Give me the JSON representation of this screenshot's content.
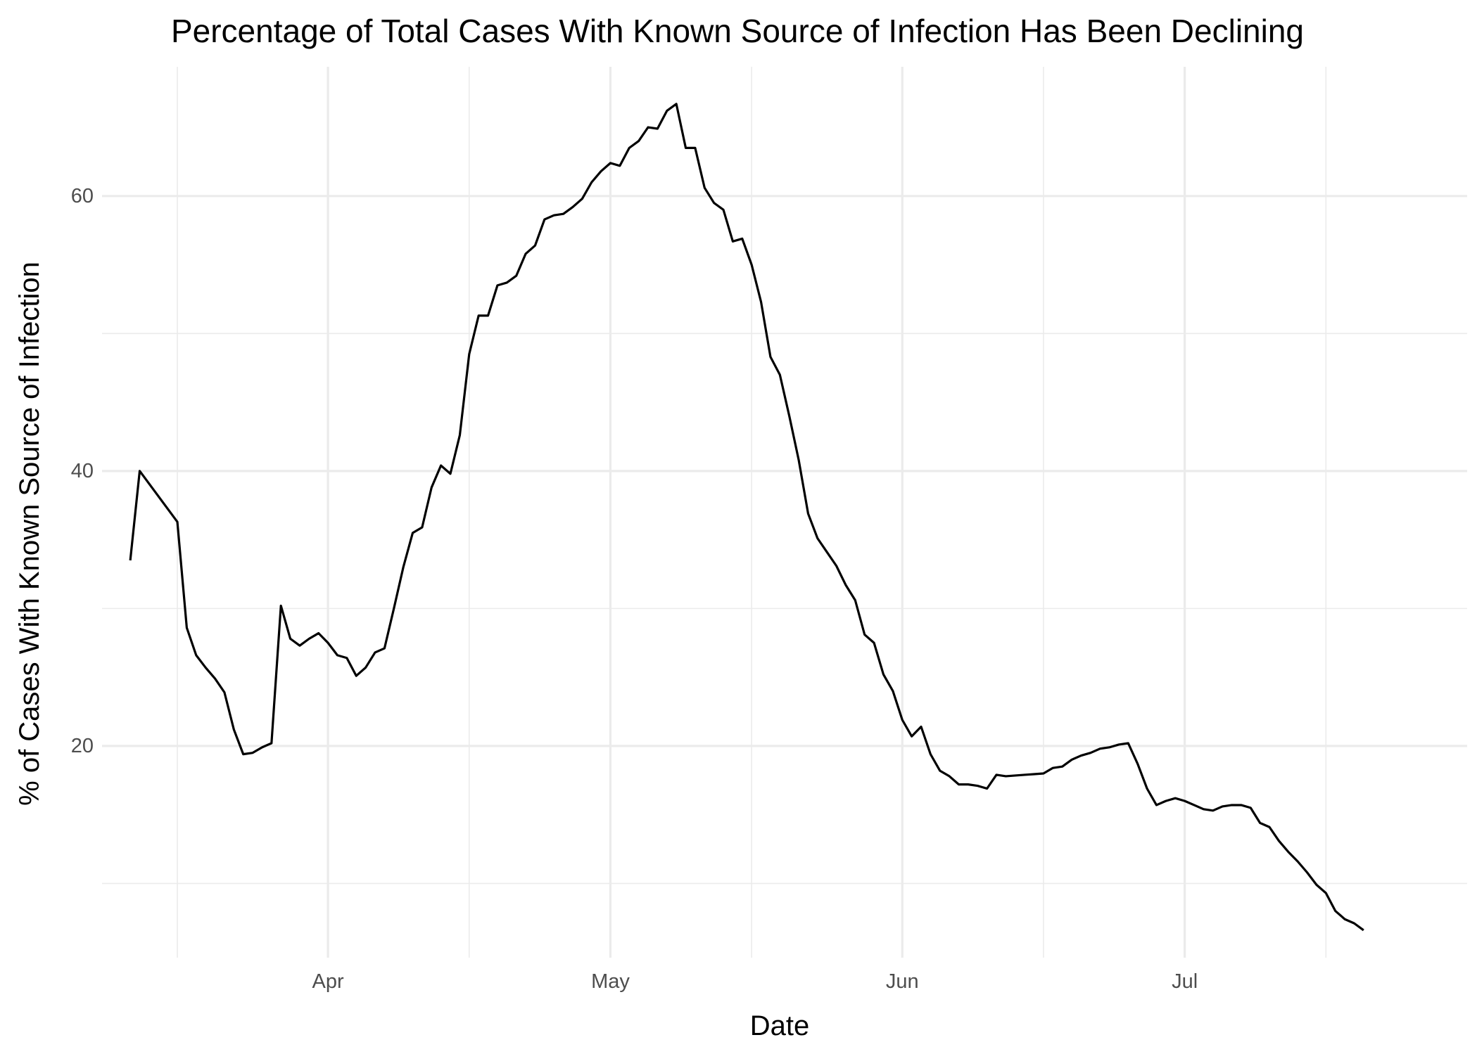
{
  "chart_data": {
    "type": "line",
    "title": "Percentage of Total Cases With Known Source of Infection Has Been Declining",
    "xlabel": "Date",
    "ylabel": "% of Cases With Known Source of Infection",
    "x_axis_type": "date",
    "xlim": [
      "2020-03-08",
      "2020-07-31"
    ],
    "ylim": [
      4.6,
      69.4
    ],
    "y_major_ticks": [
      20,
      40,
      60
    ],
    "y_minor_ticks": [
      10,
      30,
      50
    ],
    "x_major_ticks": [
      {
        "date": "2020-04-01",
        "label": "Apr"
      },
      {
        "date": "2020-05-01",
        "label": "May"
      },
      {
        "date": "2020-06-01",
        "label": "Jun"
      },
      {
        "date": "2020-07-01",
        "label": "Jul"
      }
    ],
    "x_minor_ticks": [
      "2020-03-16",
      "2020-04-16",
      "2020-05-16",
      "2020-06-16",
      "2020-07-16"
    ],
    "grid": true,
    "legend": "none",
    "line_color": "#000000",
    "series": [
      {
        "points": [
          [
            "2020-03-11",
            33.5
          ],
          [
            "2020-03-12",
            40.0
          ],
          [
            "2020-03-16",
            36.3
          ],
          [
            "2020-03-17",
            28.6
          ],
          [
            "2020-03-18",
            26.6
          ],
          [
            "2020-03-19",
            25.7
          ],
          [
            "2020-03-20",
            24.9
          ],
          [
            "2020-03-21",
            23.9
          ],
          [
            "2020-03-22",
            21.2
          ],
          [
            "2020-03-23",
            19.4
          ],
          [
            "2020-03-24",
            19.5
          ],
          [
            "2020-03-25",
            19.9
          ],
          [
            "2020-03-26",
            20.2
          ],
          [
            "2020-03-27",
            30.2
          ],
          [
            "2020-03-28",
            27.8
          ],
          [
            "2020-03-29",
            27.3
          ],
          [
            "2020-03-30",
            27.8
          ],
          [
            "2020-03-31",
            28.2
          ],
          [
            "2020-04-01",
            27.5
          ],
          [
            "2020-04-02",
            26.6
          ],
          [
            "2020-04-03",
            26.4
          ],
          [
            "2020-04-04",
            25.1
          ],
          [
            "2020-04-05",
            25.7
          ],
          [
            "2020-04-06",
            26.8
          ],
          [
            "2020-04-07",
            27.1
          ],
          [
            "2020-04-08",
            30.0
          ],
          [
            "2020-04-09",
            33.0
          ],
          [
            "2020-04-10",
            35.5
          ],
          [
            "2020-04-11",
            35.9
          ],
          [
            "2020-04-12",
            38.8
          ],
          [
            "2020-04-13",
            40.4
          ],
          [
            "2020-04-14",
            39.8
          ],
          [
            "2020-04-15",
            42.6
          ],
          [
            "2020-04-16",
            48.5
          ],
          [
            "2020-04-17",
            51.3
          ],
          [
            "2020-04-18",
            51.3
          ],
          [
            "2020-04-19",
            53.5
          ],
          [
            "2020-04-20",
            53.7
          ],
          [
            "2020-04-21",
            54.2
          ],
          [
            "2020-04-22",
            55.8
          ],
          [
            "2020-04-23",
            56.4
          ],
          [
            "2020-04-24",
            58.3
          ],
          [
            "2020-04-25",
            58.6
          ],
          [
            "2020-04-26",
            58.7
          ],
          [
            "2020-04-27",
            59.2
          ],
          [
            "2020-04-28",
            59.8
          ],
          [
            "2020-04-29",
            61.0
          ],
          [
            "2020-04-30",
            61.8
          ],
          [
            "2020-05-01",
            62.4
          ],
          [
            "2020-05-02",
            62.2
          ],
          [
            "2020-05-03",
            63.5
          ],
          [
            "2020-05-04",
            64.0
          ],
          [
            "2020-05-05",
            65.0
          ],
          [
            "2020-05-06",
            64.9
          ],
          [
            "2020-05-07",
            66.2
          ],
          [
            "2020-05-08",
            66.7
          ],
          [
            "2020-05-09",
            63.5
          ],
          [
            "2020-05-10",
            63.5
          ],
          [
            "2020-05-11",
            60.6
          ],
          [
            "2020-05-12",
            59.5
          ],
          [
            "2020-05-13",
            59.0
          ],
          [
            "2020-05-14",
            56.7
          ],
          [
            "2020-05-15",
            56.9
          ],
          [
            "2020-05-16",
            55.0
          ],
          [
            "2020-05-17",
            52.3
          ],
          [
            "2020-05-18",
            48.3
          ],
          [
            "2020-05-19",
            47.0
          ],
          [
            "2020-05-20",
            44.0
          ],
          [
            "2020-05-21",
            40.8
          ],
          [
            "2020-05-22",
            36.9
          ],
          [
            "2020-05-23",
            35.1
          ],
          [
            "2020-05-24",
            34.1
          ],
          [
            "2020-05-25",
            33.1
          ],
          [
            "2020-05-26",
            31.7
          ],
          [
            "2020-05-27",
            30.6
          ],
          [
            "2020-05-28",
            28.1
          ],
          [
            "2020-05-29",
            27.5
          ],
          [
            "2020-05-30",
            25.2
          ],
          [
            "2020-05-31",
            24.0
          ],
          [
            "2020-06-01",
            21.9
          ],
          [
            "2020-06-02",
            20.7
          ],
          [
            "2020-06-03",
            21.4
          ],
          [
            "2020-06-04",
            19.4
          ],
          [
            "2020-06-05",
            18.2
          ],
          [
            "2020-06-06",
            17.8
          ],
          [
            "2020-06-07",
            17.2
          ],
          [
            "2020-06-08",
            17.2
          ],
          [
            "2020-06-09",
            17.1
          ],
          [
            "2020-06-10",
            16.9
          ],
          [
            "2020-06-11",
            17.9
          ],
          [
            "2020-06-12",
            17.8
          ],
          [
            "2020-06-13",
            17.85
          ],
          [
            "2020-06-14",
            17.9
          ],
          [
            "2020-06-15",
            17.95
          ],
          [
            "2020-06-16",
            18.0
          ],
          [
            "2020-06-17",
            18.4
          ],
          [
            "2020-06-18",
            18.5
          ],
          [
            "2020-06-19",
            19.0
          ],
          [
            "2020-06-20",
            19.3
          ],
          [
            "2020-06-21",
            19.5
          ],
          [
            "2020-06-22",
            19.8
          ],
          [
            "2020-06-23",
            19.9
          ],
          [
            "2020-06-24",
            20.1
          ],
          [
            "2020-06-25",
            20.2
          ],
          [
            "2020-06-26",
            18.7
          ],
          [
            "2020-06-27",
            16.9
          ],
          [
            "2020-06-28",
            15.7
          ],
          [
            "2020-06-29",
            16.0
          ],
          [
            "2020-06-30",
            16.2
          ],
          [
            "2020-07-01",
            16.0
          ],
          [
            "2020-07-02",
            15.7
          ],
          [
            "2020-07-03",
            15.4
          ],
          [
            "2020-07-04",
            15.3
          ],
          [
            "2020-07-05",
            15.6
          ],
          [
            "2020-07-06",
            15.7
          ],
          [
            "2020-07-07",
            15.7
          ],
          [
            "2020-07-08",
            15.5
          ],
          [
            "2020-07-09",
            14.4
          ],
          [
            "2020-07-10",
            14.1
          ],
          [
            "2020-07-11",
            13.1
          ],
          [
            "2020-07-12",
            12.3
          ],
          [
            "2020-07-13",
            11.6
          ],
          [
            "2020-07-14",
            10.8
          ],
          [
            "2020-07-15",
            9.9
          ],
          [
            "2020-07-16",
            9.3
          ],
          [
            "2020-07-17",
            8.0
          ],
          [
            "2020-07-18",
            7.4
          ],
          [
            "2020-07-19",
            7.1
          ],
          [
            "2020-07-20",
            6.6
          ]
        ]
      }
    ]
  }
}
